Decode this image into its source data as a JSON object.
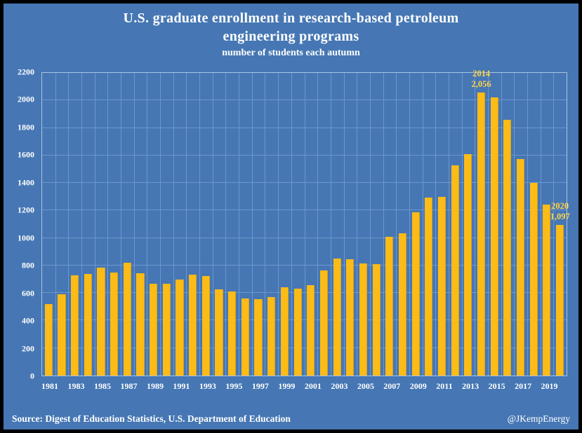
{
  "page": {
    "title_line1": "U.S. graduate enrollment in research-based petroleum",
    "title_line2": "engineering programs",
    "subtitle": "number of students each autumn",
    "source": "Source: Digest of Education Statistics, U.S. Department of Education",
    "credit": "@JKempEnergy"
  },
  "colors": {
    "background": "#4677b4",
    "bar": "#fdbb17",
    "grid": "#6d96cc",
    "text": "#ffffff",
    "annotation": "#ffd24a",
    "frame": "#000000"
  },
  "chart_data": {
    "type": "bar",
    "title": "U.S. graduate enrollment in research-based petroleum engineering programs",
    "subtitle": "number of students each autumn",
    "ylabel": "",
    "xlabel": "",
    "ylim": [
      0,
      2200
    ],
    "ytick_step": 200,
    "grid": true,
    "categories": [
      1981,
      1982,
      1983,
      1984,
      1985,
      1986,
      1987,
      1988,
      1989,
      1990,
      1991,
      1992,
      1993,
      1994,
      1995,
      1996,
      1997,
      1998,
      1999,
      2000,
      2001,
      2002,
      2003,
      2004,
      2005,
      2006,
      2007,
      2008,
      2009,
      2010,
      2011,
      2012,
      2013,
      2014,
      2015,
      2016,
      2017,
      2018,
      2019,
      2020
    ],
    "values": [
      520,
      590,
      730,
      740,
      785,
      750,
      820,
      745,
      665,
      665,
      700,
      735,
      725,
      625,
      610,
      560,
      555,
      570,
      640,
      630,
      655,
      765,
      850,
      845,
      815,
      810,
      1010,
      1035,
      1185,
      1295,
      1300,
      1530,
      1610,
      2056,
      2020,
      1860,
      1575,
      1400,
      1245,
      1097
    ],
    "xtick_labels": [
      "1981",
      "1983",
      "1985",
      "1987",
      "1989",
      "1991",
      "1993",
      "1995",
      "1997",
      "1999",
      "2001",
      "2003",
      "2005",
      "2007",
      "2009",
      "2011",
      "2013",
      "2015",
      "2017",
      "2019"
    ],
    "annotations": [
      {
        "year": 2014,
        "line1": "2014",
        "line2": "2,056"
      },
      {
        "year": 2020,
        "line1": "2020",
        "line2": "1,097"
      }
    ]
  }
}
